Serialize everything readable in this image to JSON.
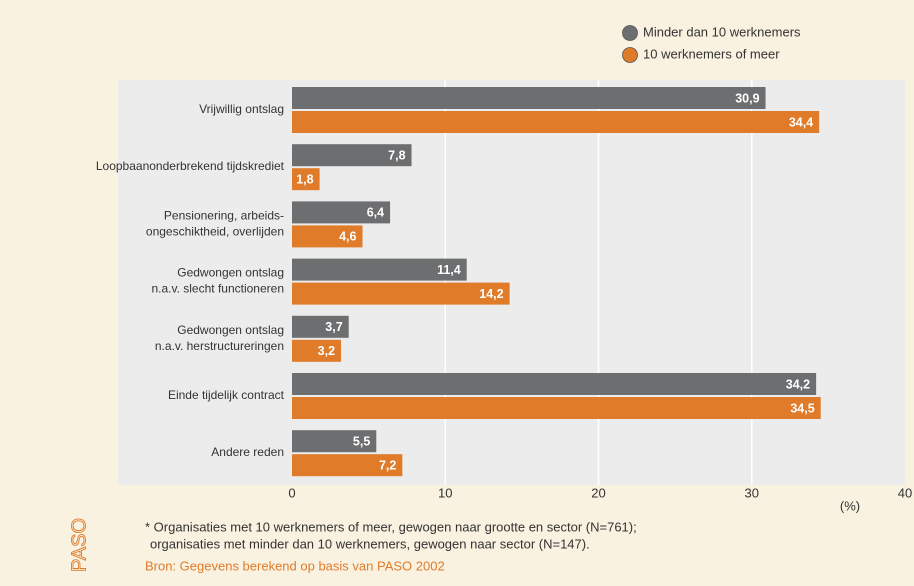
{
  "chart_data": {
    "type": "barh",
    "categories": [
      [
        "Vrijwillig ontslag"
      ],
      [
        "Loopbaanonderbrekend tijdskrediet"
      ],
      [
        "Pensionering, arbeids-",
        "ongeschiktheid, overlijden"
      ],
      [
        "Gedwongen ontslag",
        "n.a.v. slecht functioneren"
      ],
      [
        "Gedwongen ontslag",
        "n.a.v. herstructureringen"
      ],
      [
        "Einde tijdelijk contract"
      ],
      [
        "Andere reden"
      ]
    ],
    "series": [
      {
        "name": "Minder dan 10 werknemers",
        "color": "#6d6e70",
        "values": [
          30.9,
          7.8,
          6.4,
          11.4,
          3.7,
          34.2,
          5.5
        ],
        "value_labels": [
          "30,9",
          "7,8",
          "6,4",
          "11,4",
          "3,7",
          "34,2",
          "5,5"
        ]
      },
      {
        "name": "10 werknemers of meer",
        "color": "#e07b2a",
        "values": [
          34.4,
          1.8,
          4.6,
          14.2,
          3.2,
          34.5,
          7.2
        ],
        "value_labels": [
          "34,4",
          "1,8",
          "4,6",
          "14,2",
          "3,2",
          "34,5",
          "7,2"
        ]
      }
    ],
    "xlim": [
      0,
      40
    ],
    "xticks": [
      0,
      10,
      20,
      30,
      40
    ],
    "x_label": "(%)",
    "grid": true,
    "legend": "top-right",
    "notes": [
      "* Organisaties met 10 werknemers of meer, gewogen naar grootte en sector (N=761);",
      "organisaties met minder dan 10 werknemers, gewogen naar sector (N=147)."
    ],
    "source": "Bron: Gegevens berekend op basis van PASO 2002",
    "logo": "PASO"
  }
}
